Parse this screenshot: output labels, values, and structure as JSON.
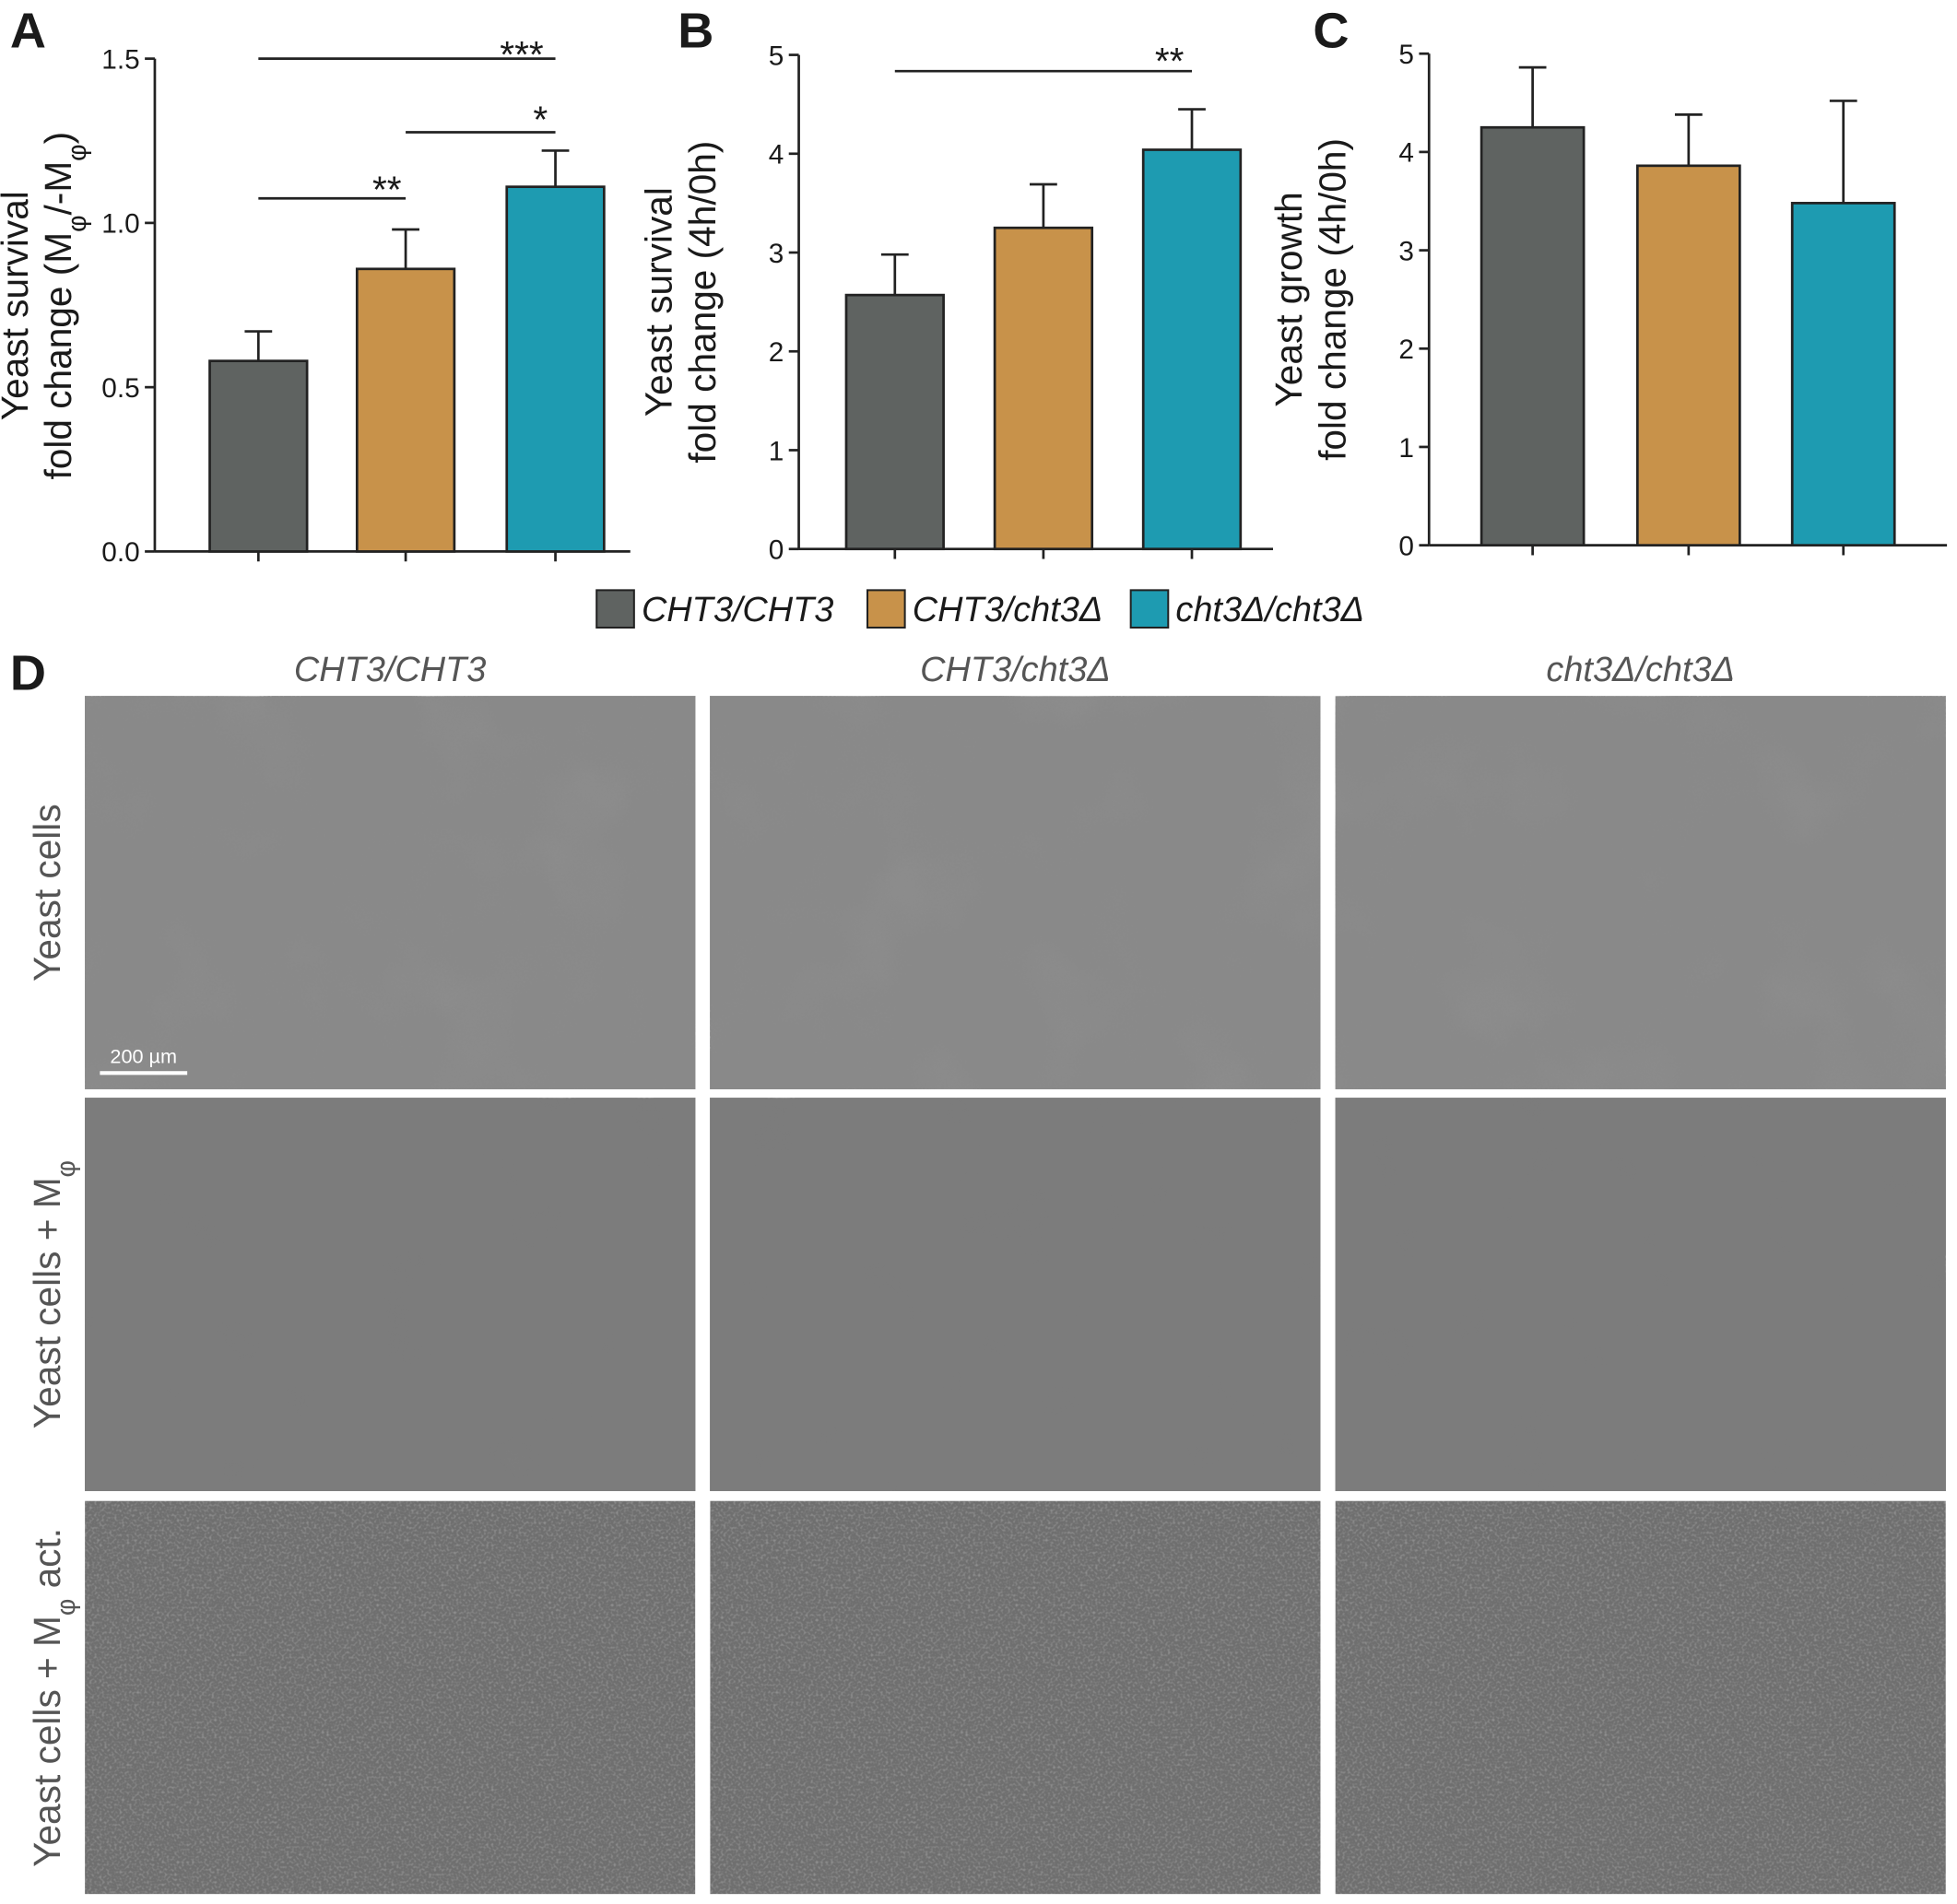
{
  "panels": [
    "A",
    "B",
    "C",
    "D"
  ],
  "legend": [
    {
      "name": "CHT3/CHT3",
      "color": "#5f6361"
    },
    {
      "name": "CHT3/cht3Δ",
      "color": "#c8924a"
    },
    {
      "name": "cht3Δ/cht3Δ",
      "color": "#1e9bb1"
    }
  ],
  "chart_data": [
    {
      "type": "bar",
      "ylabel": [
        "Yeast survival",
        "fold change (Mφ/-Mφ)"
      ],
      "categories": [
        null,
        null,
        null
      ],
      "values": [
        0.58,
        0.86,
        1.11
      ],
      "errors": [
        0.09,
        0.12,
        0.11
      ],
      "ylim": [
        0,
        1.5
      ],
      "yticks": [
        {
          "value": 0,
          "label": "0.0"
        },
        0.5,
        {
          "value": 1,
          "label": "1.0"
        },
        1.5
      ],
      "annotations": [
        "***",
        "*",
        "**"
      ]
    },
    {
      "type": "bar",
      "ylabel": [
        "Yeast survival",
        "fold change (4h/0h)"
      ],
      "categories": [
        null,
        null,
        null
      ],
      "values": [
        2.57,
        3.25,
        4.04
      ],
      "errors": [
        0.41,
        0.44,
        0.41
      ],
      "ylim": [
        0,
        5
      ],
      "yticks": [
        0,
        1,
        2,
        3,
        4,
        5
      ],
      "annotations": [
        "**"
      ]
    },
    {
      "type": "bar",
      "ylabel": [
        "Yeast growth",
        "fold change (4h/0h)"
      ],
      "categories": [
        null,
        null,
        null
      ],
      "values": [
        4.25,
        3.86,
        3.48
      ],
      "errors": [
        0.61,
        0.52,
        1.04
      ],
      "ylim": [
        0,
        5
      ],
      "yticks": [
        0,
        1,
        2,
        3,
        4,
        5
      ],
      "annotations": []
    }
  ],
  "panel_d": {
    "columns": [
      "CHT3/CHT3",
      "CHT3/cht3Δ",
      "cht3Δ/cht3Δ"
    ],
    "rows": [
      "Yeast cells",
      "Yeast cells + Mφ",
      "Yeast cells + Mφ act."
    ],
    "scale_bar": "200 µm"
  }
}
